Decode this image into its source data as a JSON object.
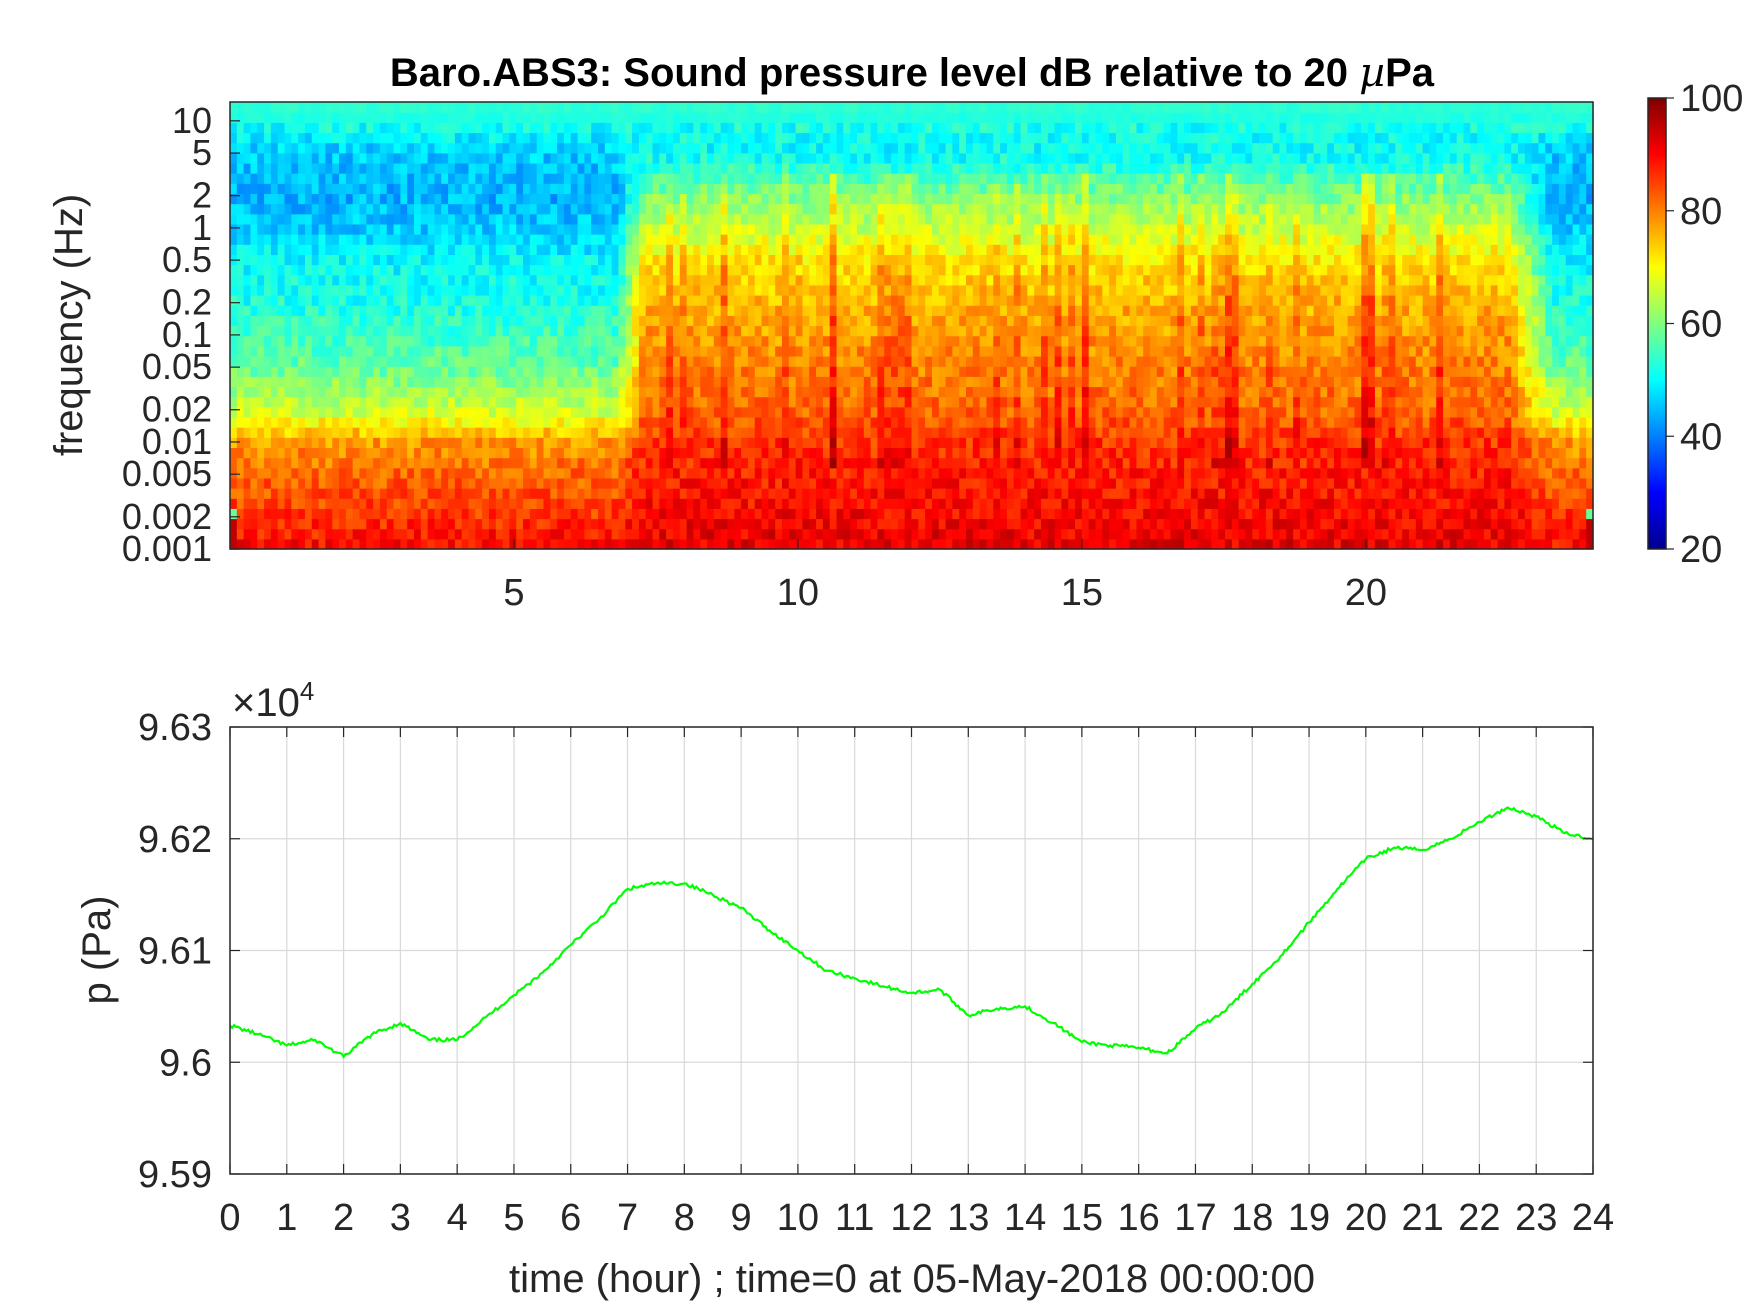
{
  "chart_data": [
    {
      "type": "heatmap",
      "title": "Baro.ABS3: Sound pressure level dB relative to 20 µPa",
      "title_prefix": "Baro.ABS3: Sound pressure level dB relative to 20 ",
      "title_mu": "µ",
      "title_suffix": "Pa",
      "ylabel": "frequency (Hz)",
      "xlabel": "",
      "xlim": [
        0,
        24
      ],
      "ylim": [
        0.001,
        15
      ],
      "y_scale": "log",
      "x_ticks": [
        5,
        10,
        15,
        20
      ],
      "x_tick_labels": [
        "5",
        "10",
        "15",
        "20"
      ],
      "y_ticks": [
        10,
        5,
        2,
        1,
        0.5,
        0.2,
        0.1,
        0.05,
        0.02,
        0.01,
        0.005,
        0.002,
        0.001
      ],
      "y_tick_labels": [
        "10",
        "5",
        "2",
        "1",
        "0.5",
        "0.2",
        "0.1",
        "0.05",
        "0.02",
        "0.01",
        "0.005",
        "0.002",
        "0.001"
      ],
      "colormap": "jet",
      "colorbar": {
        "range": [
          20,
          100
        ],
        "ticks": [
          20,
          40,
          60,
          80,
          100
        ],
        "tick_labels": [
          "20",
          "40",
          "60",
          "80",
          "100"
        ]
      },
      "level_profile_db": {
        "frequencies_hz": [
          0.001,
          0.002,
          0.005,
          0.01,
          0.02,
          0.05,
          0.1,
          0.2,
          0.5,
          1,
          2,
          5,
          10,
          15
        ],
        "quiet_hours_0_7": [
          90,
          86,
          82,
          78,
          66,
          58,
          55,
          52,
          50,
          46,
          44,
          46,
          52,
          54
        ],
        "active_hours_8_22": [
          92,
          90,
          88,
          86,
          82,
          80,
          78,
          76,
          72,
          66,
          60,
          50,
          52,
          54
        ]
      }
    },
    {
      "type": "line",
      "title": "",
      "xlabel": "time (hour) ; time=0 at 05-May-2018 00:00:00",
      "ylabel": "p (Pa)",
      "y_exponent_label": "×10",
      "y_exponent": "4",
      "xlim": [
        0,
        24
      ],
      "ylim": [
        95900,
        96300
      ],
      "x_ticks": [
        0,
        1,
        2,
        3,
        4,
        5,
        6,
        7,
        8,
        9,
        10,
        11,
        12,
        13,
        14,
        15,
        16,
        17,
        18,
        19,
        20,
        21,
        22,
        23,
        24
      ],
      "x_tick_labels": [
        "0",
        "1",
        "2",
        "3",
        "4",
        "5",
        "6",
        "7",
        "8",
        "9",
        "10",
        "11",
        "12",
        "13",
        "14",
        "15",
        "16",
        "17",
        "18",
        "19",
        "20",
        "21",
        "22",
        "23",
        "24"
      ],
      "y_ticks": [
        95900,
        96000,
        96100,
        96200,
        96300
      ],
      "y_tick_labels": [
        "9.59",
        "9.6",
        "9.61",
        "9.62",
        "9.63"
      ],
      "grid": true,
      "series": [
        {
          "color": "#00ff00",
          "x": [
            0,
            0.5,
            1,
            1.5,
            2,
            2.5,
            3,
            3.5,
            4,
            4.5,
            5,
            5.5,
            6,
            6.5,
            7,
            7.5,
            8,
            8.5,
            9,
            9.5,
            10,
            10.5,
            11,
            11.5,
            12,
            12.5,
            13,
            13.5,
            14,
            14.5,
            15,
            15.5,
            16,
            16.5,
            17,
            17.5,
            18,
            18.5,
            19,
            19.5,
            20,
            20.5,
            21,
            21.5,
            22,
            22.5,
            23,
            23.5,
            24
          ],
          "y": [
            96033,
            96025,
            96015,
            96020,
            96005,
            96025,
            96035,
            96020,
            96020,
            96040,
            96060,
            96080,
            96105,
            96128,
            96155,
            96160,
            96160,
            96150,
            96138,
            96118,
            96100,
            96082,
            96075,
            96068,
            96062,
            96065,
            96042,
            96048,
            96050,
            96035,
            96018,
            96015,
            96013,
            96008,
            96030,
            96045,
            96070,
            96095,
            96125,
            96155,
            96182,
            96192,
            96190,
            96200,
            96215,
            96228,
            96220,
            96205,
            96200
          ]
        }
      ]
    }
  ]
}
